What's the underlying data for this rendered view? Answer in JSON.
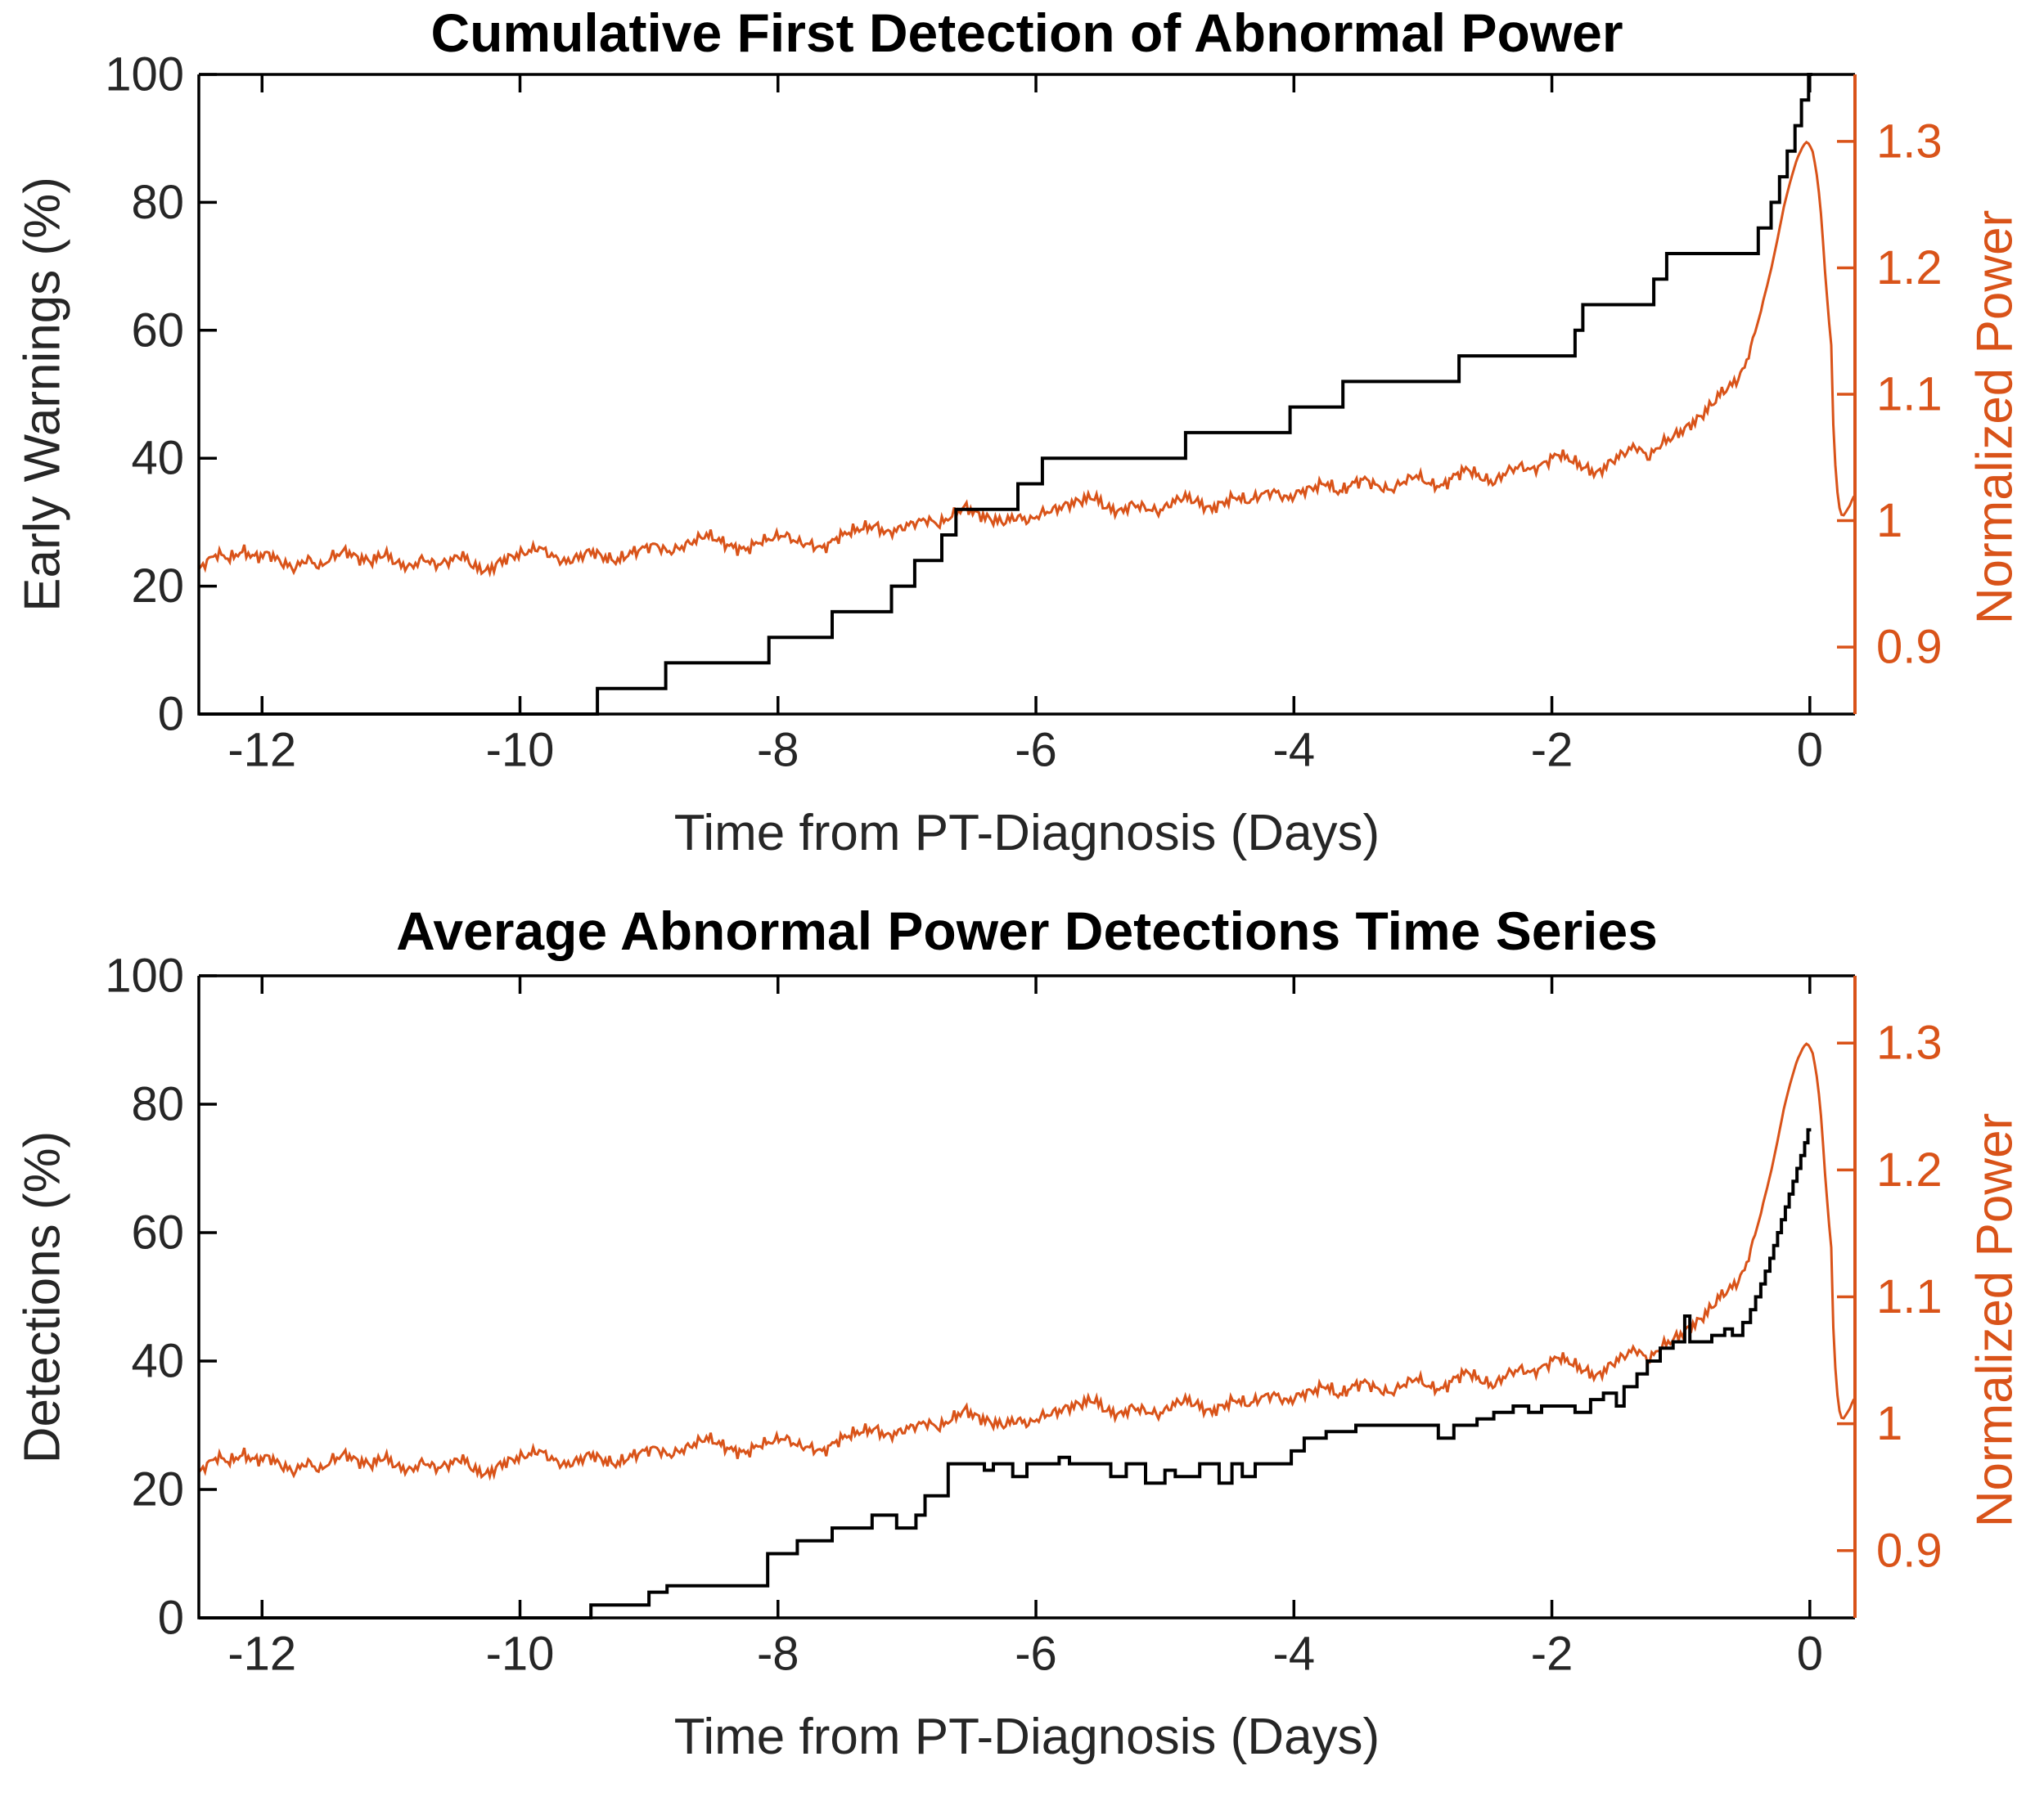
{
  "figure": {
    "background": "#ffffff"
  },
  "chart_data": {
    "type": "line",
    "layout": {
      "grid": false,
      "legend": false,
      "subplots": 2
    },
    "xlabel": "Time from PT-Diagnosis (Days)",
    "xlim": [
      -12.49,
      0.35
    ],
    "xticks": [
      -12,
      -10,
      -8,
      -6,
      -4,
      -2,
      0
    ],
    "xtick_labels": [
      "-12",
      "-10",
      "-8",
      "-6",
      "-4",
      "-2",
      "0"
    ],
    "left_ylim": [
      0,
      100
    ],
    "left_yticks": [
      0,
      20,
      40,
      60,
      80,
      100
    ],
    "right_ylabel": "Normalized Power",
    "right_ylim": [
      0.847,
      1.353
    ],
    "right_yticks": [
      0.9,
      1.0,
      1.1,
      1.2,
      1.3
    ],
    "right_ytick_labels": [
      "0.9",
      "1",
      "1.1",
      "1.2",
      "1.3"
    ],
    "colors": {
      "black_series": "#000000",
      "axis": "#000000",
      "tick_text": "#262626",
      "orange": "#d95319"
    },
    "normalized_power": {
      "name": "Normalized Power",
      "noise": {
        "amp": 0.0038,
        "freqs": [
          137,
          73,
          193
        ],
        "phases": [
          0,
          2.1,
          0.7
        ],
        "fade_start": -0.5,
        "fade_end": -0.32
      },
      "points": [
        [
          -12.49,
          0.961
        ],
        [
          -12.45,
          0.966
        ],
        [
          -12.35,
          0.974
        ],
        [
          -12.25,
          0.97
        ],
        [
          -12.15,
          0.976
        ],
        [
          -12.05,
          0.971
        ],
        [
          -11.95,
          0.974
        ],
        [
          -11.85,
          0.967
        ],
        [
          -11.75,
          0.962
        ],
        [
          -11.65,
          0.97
        ],
        [
          -11.55,
          0.963
        ],
        [
          -11.45,
          0.972
        ],
        [
          -11.35,
          0.976
        ],
        [
          -11.25,
          0.97
        ],
        [
          -11.15,
          0.968
        ],
        [
          -11.05,
          0.974
        ],
        [
          -10.95,
          0.966
        ],
        [
          -10.85,
          0.963
        ],
        [
          -10.75,
          0.97
        ],
        [
          -10.65,
          0.965
        ],
        [
          -10.55,
          0.968
        ],
        [
          -10.45,
          0.973
        ],
        [
          -10.35,
          0.963
        ],
        [
          -10.25,
          0.96
        ],
        [
          -10.15,
          0.968
        ],
        [
          -10.05,
          0.972
        ],
        [
          -9.95,
          0.975
        ],
        [
          -9.85,
          0.979
        ],
        [
          -9.75,
          0.972
        ],
        [
          -9.65,
          0.967
        ],
        [
          -9.55,
          0.971
        ],
        [
          -9.45,
          0.976
        ],
        [
          -9.35,
          0.971
        ],
        [
          -9.25,
          0.968
        ],
        [
          -9.15,
          0.974
        ],
        [
          -9.05,
          0.978
        ],
        [
          -8.95,
          0.981
        ],
        [
          -8.85,
          0.975
        ],
        [
          -8.75,
          0.979
        ],
        [
          -8.65,
          0.984
        ],
        [
          -8.55,
          0.989
        ],
        [
          -8.45,
          0.984
        ],
        [
          -8.35,
          0.979
        ],
        [
          -8.25,
          0.977
        ],
        [
          -8.15,
          0.983
        ],
        [
          -8.05,
          0.986
        ],
        [
          -7.95,
          0.989
        ],
        [
          -7.85,
          0.983
        ],
        [
          -7.75,
          0.981
        ],
        [
          -7.65,
          0.978
        ],
        [
          -7.55,
          0.986
        ],
        [
          -7.45,
          0.991
        ],
        [
          -7.35,
          0.994
        ],
        [
          -7.25,
          0.996
        ],
        [
          -7.15,
          0.99
        ],
        [
          -7.05,
          0.994
        ],
        [
          -6.95,
          0.998
        ],
        [
          -6.85,
          1.001
        ],
        [
          -6.75,
          0.997
        ],
        [
          -6.65,
          1.004
        ],
        [
          -6.55,
          1.011
        ],
        [
          -6.45,
          1.005
        ],
        [
          -6.35,
          1.001
        ],
        [
          -6.25,
          0.999
        ],
        [
          -6.15,
          1.003
        ],
        [
          -6.05,
          1.0
        ],
        [
          -5.95,
          1.006
        ],
        [
          -5.85,
          1.009
        ],
        [
          -5.75,
          1.013
        ],
        [
          -5.65,
          1.016
        ],
        [
          -5.55,
          1.019
        ],
        [
          -5.45,
          1.01
        ],
        [
          -5.35,
          1.007
        ],
        [
          -5.25,
          1.013
        ],
        [
          -5.15,
          1.01
        ],
        [
          -5.05,
          1.007
        ],
        [
          -4.95,
          1.014
        ],
        [
          -4.85,
          1.019
        ],
        [
          -4.75,
          1.015
        ],
        [
          -4.65,
          1.009
        ],
        [
          -4.55,
          1.014
        ],
        [
          -4.45,
          1.019
        ],
        [
          -4.35,
          1.015
        ],
        [
          -4.25,
          1.021
        ],
        [
          -4.15,
          1.023
        ],
        [
          -4.05,
          1.017
        ],
        [
          -3.95,
          1.023
        ],
        [
          -3.85,
          1.026
        ],
        [
          -3.75,
          1.03
        ],
        [
          -3.65,
          1.022
        ],
        [
          -3.55,
          1.029
        ],
        [
          -3.45,
          1.033
        ],
        [
          -3.35,
          1.027
        ],
        [
          -3.25,
          1.024
        ],
        [
          -3.15,
          1.031
        ],
        [
          -3.05,
          1.036
        ],
        [
          -2.95,
          1.029
        ],
        [
          -2.85,
          1.027
        ],
        [
          -2.75,
          1.036
        ],
        [
          -2.65,
          1.041
        ],
        [
          -2.55,
          1.034
        ],
        [
          -2.45,
          1.03
        ],
        [
          -2.35,
          1.039
        ],
        [
          -2.25,
          1.043
        ],
        [
          -2.15,
          1.04
        ],
        [
          -2.05,
          1.046
        ],
        [
          -1.95,
          1.053
        ],
        [
          -1.85,
          1.048
        ],
        [
          -1.75,
          1.042
        ],
        [
          -1.65,
          1.037
        ],
        [
          -1.55,
          1.046
        ],
        [
          -1.45,
          1.053
        ],
        [
          -1.35,
          1.059
        ],
        [
          -1.25,
          1.05
        ],
        [
          -1.15,
          1.061
        ],
        [
          -1.05,
          1.067
        ],
        [
          -0.95,
          1.074
        ],
        [
          -0.85,
          1.082
        ],
        [
          -0.75,
          1.093
        ],
        [
          -0.7,
          1.1
        ],
        [
          -0.65,
          1.104
        ],
        [
          -0.6,
          1.108
        ],
        [
          -0.55,
          1.113
        ],
        [
          -0.5,
          1.123
        ],
        [
          -0.45,
          1.14
        ],
        [
          -0.4,
          1.158
        ],
        [
          -0.35,
          1.178
        ],
        [
          -0.3,
          1.199
        ],
        [
          -0.25,
          1.223
        ],
        [
          -0.2,
          1.249
        ],
        [
          -0.15,
          1.269
        ],
        [
          -0.1,
          1.286
        ],
        [
          -0.05,
          1.297
        ],
        [
          -0.02,
          1.3
        ],
        [
          0.02,
          1.293
        ],
        [
          0.05,
          1.277
        ],
        [
          0.08,
          1.251
        ],
        [
          0.1,
          1.224
        ],
        [
          0.12,
          1.194
        ],
        [
          0.14,
          1.168
        ],
        [
          0.155,
          1.15
        ],
        [
          0.165,
          1.143
        ],
        [
          0.18,
          1.08
        ],
        [
          0.2,
          1.04
        ],
        [
          0.22,
          1.015
        ],
        [
          0.24,
          1.005
        ],
        [
          0.26,
          1.004
        ],
        [
          0.28,
          1.007
        ],
        [
          0.31,
          1.012
        ],
        [
          0.33,
          1.017
        ],
        [
          0.35,
          1.021
        ]
      ]
    },
    "plots": [
      {
        "title": "Cumulative First Detection of Abnormal Power",
        "left_ylabel": "Early Warnings (%)",
        "black_series": {
          "name": "Early Warnings (%)",
          "style": "step",
          "start_y": 0,
          "end_x": 0.02,
          "changes": [
            [
              -9.4,
              4
            ],
            [
              -8.87,
              8
            ],
            [
              -8.07,
              12
            ],
            [
              -7.58,
              16
            ],
            [
              -7.12,
              20
            ],
            [
              -6.94,
              24
            ],
            [
              -6.73,
              28
            ],
            [
              -6.62,
              32
            ],
            [
              -6.14,
              36
            ],
            [
              -5.95,
              40
            ],
            [
              -4.84,
              44
            ],
            [
              -4.03,
              48
            ],
            [
              -3.62,
              52
            ],
            [
              -2.72,
              56
            ],
            [
              -1.82,
              60
            ],
            [
              -1.76,
              64
            ],
            [
              -1.21,
              68
            ],
            [
              -1.11,
              72
            ],
            [
              -0.4,
              76
            ],
            [
              -0.3,
              80
            ],
            [
              -0.235,
              84
            ],
            [
              -0.175,
              88
            ],
            [
              -0.115,
              92
            ],
            [
              -0.065,
              96
            ],
            [
              -0.01,
              100
            ]
          ]
        }
      },
      {
        "title": "Average Abnormal Power Detections Time Series",
        "left_ylabel": "Detections (%)",
        "black_series": {
          "name": "Detections (%)",
          "style": "step",
          "start_y": 0,
          "end_x": 0.01,
          "changes": [
            [
              -9.45,
              2
            ],
            [
              -9.0,
              4
            ],
            [
              -8.86,
              5
            ],
            [
              -8.08,
              10
            ],
            [
              -7.85,
              12
            ],
            [
              -7.58,
              14
            ],
            [
              -7.27,
              16
            ],
            [
              -7.08,
              14
            ],
            [
              -6.93,
              16
            ],
            [
              -6.86,
              19
            ],
            [
              -6.68,
              24
            ],
            [
              -6.4,
              23
            ],
            [
              -6.33,
              24
            ],
            [
              -6.18,
              22
            ],
            [
              -6.07,
              24
            ],
            [
              -5.82,
              25
            ],
            [
              -5.74,
              24
            ],
            [
              -5.42,
              22
            ],
            [
              -5.3,
              24
            ],
            [
              -5.15,
              21
            ],
            [
              -5.0,
              23
            ],
            [
              -4.92,
              22
            ],
            [
              -4.73,
              24
            ],
            [
              -4.58,
              21
            ],
            [
              -4.48,
              24
            ],
            [
              -4.4,
              22
            ],
            [
              -4.3,
              24
            ],
            [
              -4.02,
              26
            ],
            [
              -3.92,
              28
            ],
            [
              -3.75,
              29
            ],
            [
              -3.52,
              30
            ],
            [
              -2.88,
              28
            ],
            [
              -2.76,
              30
            ],
            [
              -2.58,
              31
            ],
            [
              -2.45,
              32
            ],
            [
              -2.3,
              33
            ],
            [
              -2.18,
              32
            ],
            [
              -2.08,
              33
            ],
            [
              -1.82,
              32
            ],
            [
              -1.7,
              34
            ],
            [
              -1.6,
              35
            ],
            [
              -1.5,
              33
            ],
            [
              -1.44,
              36
            ],
            [
              -1.34,
              38
            ],
            [
              -1.26,
              40
            ],
            [
              -1.16,
              42
            ],
            [
              -1.06,
              43
            ],
            [
              -0.97,
              47
            ],
            [
              -0.93,
              43
            ],
            [
              -0.76,
              44
            ],
            [
              -0.66,
              45
            ],
            [
              -0.6,
              44
            ],
            [
              -0.52,
              46
            ],
            [
              -0.46,
              48
            ],
            [
              -0.42,
              50
            ],
            [
              -0.38,
              52
            ],
            [
              -0.345,
              54
            ],
            [
              -0.31,
              56
            ],
            [
              -0.28,
              58
            ],
            [
              -0.25,
              60
            ],
            [
              -0.22,
              62
            ],
            [
              -0.19,
              64
            ],
            [
              -0.16,
              66
            ],
            [
              -0.13,
              68
            ],
            [
              -0.1,
              70
            ],
            [
              -0.07,
              72
            ],
            [
              -0.04,
              74
            ],
            [
              -0.015,
              76
            ]
          ]
        }
      }
    ]
  }
}
